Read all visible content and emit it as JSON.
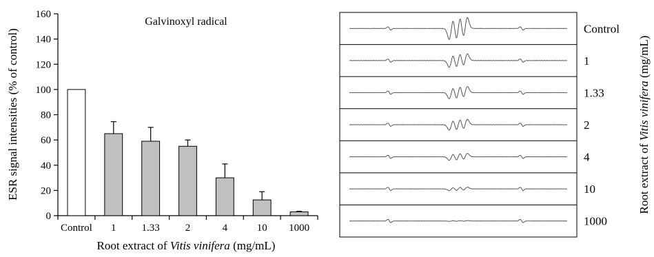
{
  "chart_data": [
    {
      "type": "bar",
      "title": "Galvinoxyl radical",
      "ylabel": "ESR signal intensities (% of control)",
      "xlabel_parts": [
        "Root extract of ",
        "Vitis vinifera",
        " (mg/mL)"
      ],
      "categories": [
        "Control",
        "1",
        "1.33",
        "2",
        "4",
        "10",
        "1000"
      ],
      "values": [
        100,
        65,
        59,
        55,
        30,
        12.5,
        3
      ],
      "errors": [
        0,
        9.5,
        11,
        5,
        11,
        6.5,
        0.5
      ],
      "bar_colors": [
        "#ffffff",
        "#c0c0c0",
        "#c0c0c0",
        "#c0c0c0",
        "#c0c0c0",
        "#c0c0c0",
        "#c0c0c0"
      ],
      "yticks": [
        0,
        20,
        40,
        60,
        80,
        100,
        120,
        140,
        160
      ],
      "ylim": [
        0,
        160
      ],
      "grid": false
    },
    {
      "type": "line",
      "panels": [
        "Control",
        "1",
        "1.33",
        "2",
        "4",
        "10",
        "1000"
      ],
      "signal_amplitude": [
        1.0,
        0.62,
        0.56,
        0.5,
        0.32,
        0.16,
        0.03
      ],
      "side_label_parts": [
        "Root extract of ",
        "Vitis vinifera",
        " (mg/mL)"
      ]
    }
  ]
}
